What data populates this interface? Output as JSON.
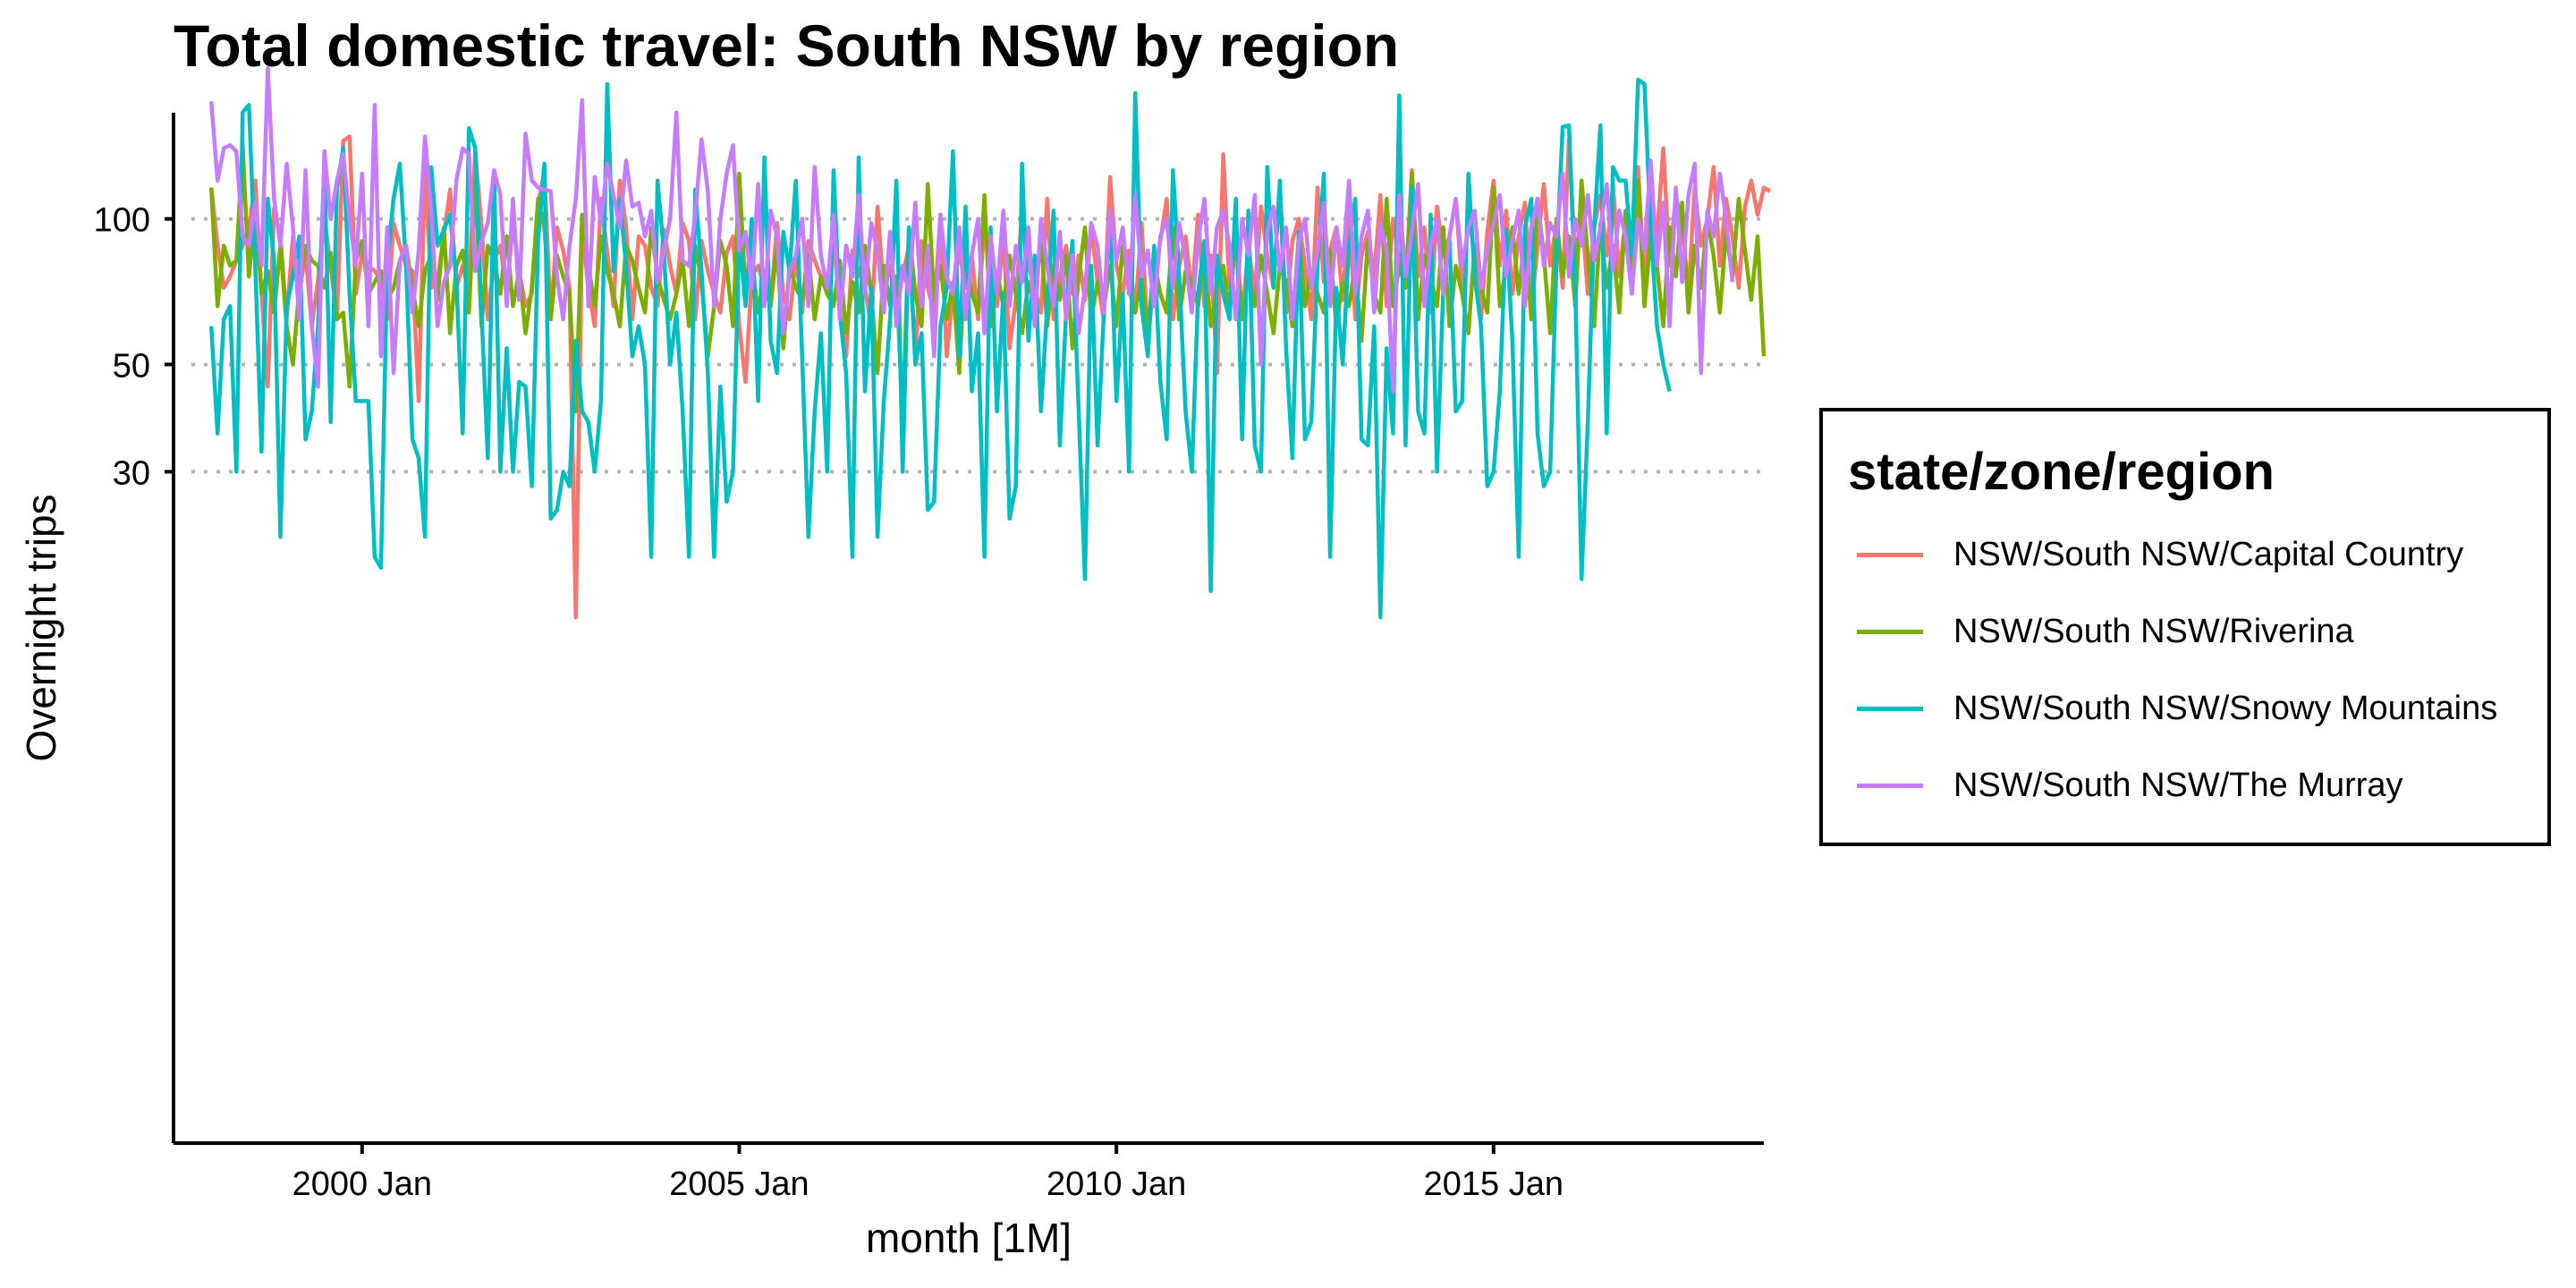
{
  "chart_data": {
    "type": "line",
    "title": "Total domestic travel: South NSW by region",
    "xlabel": "month [1M]",
    "ylabel": "Overnight trips",
    "y_scale": "log",
    "ylim": [
      14,
      205
    ],
    "yticks": [
      30,
      50,
      100
    ],
    "ytick_labels": [
      "30",
      "50",
      "100"
    ],
    "xlim": [
      "1997-07",
      "2018-08"
    ],
    "xticks": [
      "2000-01",
      "2005-01",
      "2010-01",
      "2015-01"
    ],
    "xtick_labels": [
      "2000 Jan",
      "2005 Jan",
      "2010 Jan",
      "2015 Jan"
    ],
    "x_start": "1998-01",
    "grid": "horizontal dotted at y ticks",
    "legend_title": "state/zone/region",
    "legend_position": "right",
    "series": [
      {
        "name": "NSW/South NSW/Capital Country",
        "color": "#F8766D",
        "values": [
          116,
          88,
          72,
          76,
          82,
          88,
          95,
          120,
          70,
          45,
          105,
          92,
          62,
          92,
          70,
          85,
          60,
          75,
          100,
          80,
          62,
          145,
          148,
          70,
          85,
          80,
          78,
          75,
          62,
          98,
          88,
          80,
          78,
          42,
          128,
          72,
          75,
          92,
          115,
          72,
          80,
          72,
          138,
          96,
          62,
          82,
          88,
          70,
          98,
          78,
          66,
          70,
          108,
          125,
          62,
          96,
          86,
          72,
          15,
          95,
          72,
          60,
          110,
          85,
          66,
          120,
          96,
          62,
          92,
          88,
          72,
          66,
          95,
          80,
          70,
          98,
          90,
          62,
          90,
          78,
          70,
          64,
          85,
          92,
          60,
          46,
          76,
          80,
          72,
          66,
          98,
          70,
          62,
          84,
          64,
          90,
          82,
          76,
          70,
          92,
          64,
          52,
          86,
          78,
          72,
          60,
          106,
          70,
          80,
          66,
          76,
          88,
          52,
          90,
          72,
          64,
          102,
          52,
          70,
          86,
          72,
          84,
          62,
          98,
          74,
          66,
          92,
          54,
          68,
          104,
          80,
          72,
          64,
          110,
          62,
          76,
          88,
          70,
          84,
          68,
          96,
          74,
          62,
          122,
          80,
          70,
          86,
          64,
          98,
          56,
          76,
          90,
          110,
          62,
          80,
          92,
          70,
          102,
          66,
          84,
          48,
          136,
          72,
          96,
          62,
          88,
          70,
          106,
          84,
          72,
          118,
          64,
          90,
          100,
          80,
          62,
          116,
          74,
          86,
          96,
          68,
          104,
          62,
          84,
          94,
          76,
          112,
          66,
          100,
          82,
          72,
          126,
          76,
          96,
          64,
          106,
          84,
          92,
          110,
          72,
          100,
          86,
          62,
          94,
          120,
          80,
          104,
          70,
          92,
          108,
          64,
          88,
          118,
          80,
          98,
          72,
          146,
          82,
          104,
          70,
          96,
          112,
          84,
          118,
          76,
          100,
          88,
          128,
          72,
          106,
          92,
          140,
          80,
          112,
          96,
          70,
          116,
          88,
          100,
          128,
          80,
          110,
          92,
          72,
          106,
          120,
          102,
          116,
          114
        ]
      },
      {
        "name": "NSW/South NSW/Riverina",
        "color": "#7CAE00",
        "values": [
          116,
          66,
          88,
          80,
          82,
          142,
          76,
          105,
          70,
          78,
          64,
          88,
          60,
          50,
          72,
          88,
          82,
          80,
          72,
          85,
          62,
          64,
          45,
          82,
          90,
          70,
          74,
          78,
          68,
          72,
          82,
          88,
          72,
          60,
          78,
          84,
          68,
          96,
          58,
          80,
          86,
          64,
          120,
          60,
          88,
          82,
          70,
          92,
          66,
          78,
          58,
          72,
          110,
          96,
          62,
          84,
          76,
          70,
          40,
          102,
          80,
          66,
          92,
          78,
          70,
          60,
          88,
          82,
          72,
          64,
          96,
          76,
          68,
          62,
          70,
          82,
          60,
          88,
          74,
          52,
          66,
          90,
          80,
          60,
          124,
          70,
          82,
          64,
          78,
          66,
          88,
          54,
          80,
          72,
          68,
          84,
          62,
          76,
          70,
          66,
          82,
          58,
          74,
          64,
          88,
          70,
          48,
          80,
          66,
          76,
          38,
          96,
          70,
          60,
          118,
          68,
          80,
          62,
          74,
          48,
          86,
          70,
          64,
          112,
          60,
          78,
          66,
          84,
          70,
          58,
          74,
          66,
          92,
          60,
          80,
          68,
          84,
          54,
          76,
          96,
          62,
          74,
          66,
          80,
          60,
          88,
          72,
          64,
          76,
          58,
          82,
          70,
          64,
          96,
          62,
          78,
          74,
          66,
          86,
          60,
          72,
          80,
          64,
          94,
          62,
          76,
          66,
          84,
          70,
          58,
          80,
          74,
          60,
          92,
          66,
          78,
          70,
          64,
          86,
          60,
          74,
          66,
          80,
          56,
          90,
          70,
          64,
          110,
          66,
          80,
          72,
          124,
          62,
          84,
          76,
          66,
          96,
          60,
          80,
          70,
          58,
          88,
          72,
          64,
          116,
          66,
          80,
          96,
          70,
          92,
          62,
          110,
          84,
          58,
          100,
          76,
          92,
          66,
          120,
          84,
          60,
          98,
          72,
          88,
          64,
          104,
          76,
          120,
          66,
          92,
          80,
          60,
          96,
          76,
          108,
          64,
          88,
          72,
          100,
          84,
          64,
          94,
          76,
          110,
          86,
          68,
          92,
          52
        ]
      },
      {
        "name": "NSW/South NSW/Snowy Mountains",
        "color": "#00BFC4",
        "values": [
          60,
          36,
          62,
          66,
          30,
          166,
          172,
          80,
          33,
          110,
          82,
          22,
          66,
          76,
          92,
          35,
          40,
          60,
          130,
          38,
          116,
          140,
          70,
          42,
          42,
          42,
          20,
          19,
          82,
          110,
          130,
          80,
          35,
          32,
          22,
          128,
          88,
          95,
          102,
          75,
          36,
          154,
          140,
          64,
          32,
          124,
          30,
          54,
          30,
          46,
          45,
          28,
          90,
          130,
          24,
          25,
          30,
          28,
          56,
          40,
          38,
          30,
          42,
          190,
          78,
          110,
          80,
          52,
          60,
          50,
          20,
          120,
          86,
          50,
          64,
          40,
          20,
          115,
          78,
          48,
          20,
          45,
          26,
          30,
          92,
          66,
          100,
          42,
          134,
          56,
          48,
          94,
          78,
          120,
          52,
          22,
          40,
          58,
          30,
          126,
          64,
          48,
          20,
          134,
          44,
          72,
          22,
          42,
          62,
          120,
          30,
          96,
          50,
          58,
          25,
          26,
          60,
          72,
          138,
          52,
          106,
          44,
          58,
          20,
          96,
          40,
          70,
          24,
          28,
          130,
          56,
          84,
          40,
          66,
          104,
          34,
          64,
          90,
          40,
          18,
          80,
          34,
          64,
          100,
          42,
          70,
          30,
          182,
          66,
          52,
          88,
          46,
          35,
          126,
          76,
          40,
          30,
          70,
          90,
          17,
          84,
          70,
          62,
          110,
          35,
          104,
          34,
          30,
          128,
          72,
          120,
          54,
          32,
          94,
          35,
          38,
          80,
          124,
          20,
          72,
          50,
          88,
          110,
          35,
          34,
          60,
          15,
          54,
          36,
          180,
          34,
          116,
          40,
          36,
          102,
          30,
          72,
          90,
          40,
          42,
          124,
          76,
          60,
          28,
          30,
          44,
          95,
          56,
          20,
          96,
          110,
          36,
          28,
          30,
          82,
          155,
          156,
          72,
          18,
          38,
          96,
          156,
          36,
          128,
          120,
          120,
          84,
          194,
          190,
          96,
          60,
          50,
          44
        ]
      },
      {
        "name": "NSW/South NSW/The Murray",
        "color": "#C77CFF",
        "values": [
          175,
          120,
          140,
          142,
          138,
          92,
          88,
          108,
          80,
          205,
          110,
          88,
          130,
          96,
          62,
          126,
          60,
          45,
          138,
          100,
          120,
          136,
          100,
          80,
          124,
          60,
          172,
          52,
          96,
          48,
          82,
          88,
          64,
          86,
          148,
          104,
          60,
          74,
          80,
          120,
          140,
          136,
          78,
          90,
          98,
          126,
          112,
          66,
          110,
          68,
          150,
          120,
          116,
          115,
          114,
          76,
          62,
          88,
          110,
          176,
          66,
          122,
          98,
          130,
          112,
          96,
          132,
          106,
          108,
          92,
          104,
          74,
          86,
          100,
          166,
          82,
          80,
          102,
          146,
          114,
          66,
          100,
          124,
          142,
          86,
          94,
          72,
          118,
          66,
          104,
          92,
          58,
          78,
          84,
          100,
          66,
          128,
          84,
          72,
          102,
          62,
          88,
          76,
          112,
          70,
          98,
          86,
          64,
          94,
          60,
          80,
          70,
          108,
          66,
          88,
          52,
          102,
          76,
          70,
          96,
          62,
          84,
          100,
          58,
          92,
          70,
          104,
          66,
          88,
          74,
          96,
          60,
          100,
          80,
          66,
          94,
          62,
          84,
          58,
          72,
          98,
          88,
          64,
          104,
          82,
          96,
          70,
          112,
          76,
          86,
          66,
          92,
          100,
          72,
          98,
          82,
          64,
          90,
          110,
          70,
          96,
          104,
          88,
          62,
          100,
          84,
          112,
          50,
          94,
          106,
          78,
          96,
          62,
          90,
          100,
          72,
          86,
          108,
          66,
          96,
          80,
          120,
          70,
          92,
          104,
          64,
          98,
          86,
          44,
          112,
          76,
          94,
          118,
          66,
          88,
          100,
          70,
          92,
          110,
          80,
          96,
          104,
          72,
          86,
          98,
          112,
          76,
          90,
          104,
          66,
          96,
          110,
          80,
          98,
          92,
          124,
          76,
          100,
          88,
          112,
          82,
          96,
          118,
          78,
          104,
          92,
          70,
          100,
          86,
          132,
          80,
          108,
          60,
          116,
          74,
          112,
          130,
          48,
          104,
          92,
          124,
          100,
          74
        ]
      }
    ]
  }
}
